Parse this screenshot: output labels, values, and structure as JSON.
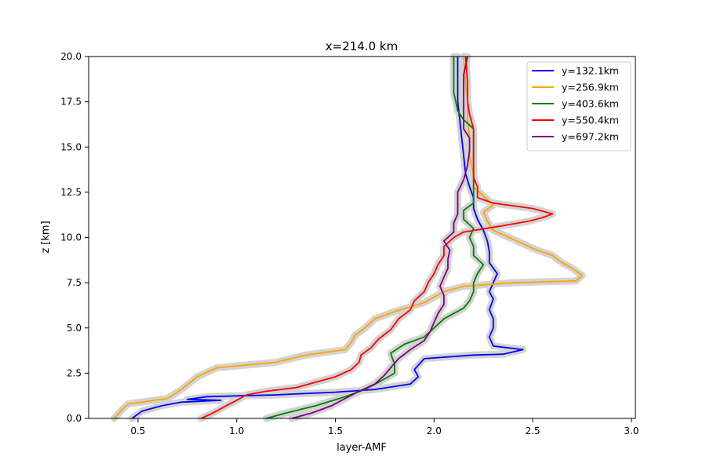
{
  "chart_data": {
    "type": "line",
    "title": "x=214.0 km",
    "xlabel": "layer-AMF",
    "ylabel": "z [km]",
    "xlim": [
      0.25,
      3.02
    ],
    "ylim": [
      0,
      20
    ],
    "xticks": [
      "0.5",
      "1.0",
      "1.5",
      "2.0",
      "2.5",
      "3.0"
    ],
    "yticks": [
      "0.0",
      "2.5",
      "5.0",
      "7.5",
      "10.0",
      "12.5",
      "15.0",
      "17.5",
      "20.0"
    ],
    "grid": false,
    "legend_position": "top-right",
    "uncertainty_band_color": "#d3d3d3",
    "series": [
      {
        "name": "y=132.1km",
        "color": "#0000ff",
        "points": [
          [
            0.47,
            0
          ],
          [
            0.52,
            0.4
          ],
          [
            0.62,
            0.7
          ],
          [
            0.72,
            0.9
          ],
          [
            0.92,
            1.0
          ],
          [
            0.75,
            1.05
          ],
          [
            0.85,
            1.2
          ],
          [
            1.2,
            1.3
          ],
          [
            1.5,
            1.45
          ],
          [
            1.7,
            1.6
          ],
          [
            1.88,
            1.9
          ],
          [
            1.92,
            2.3
          ],
          [
            1.9,
            2.7
          ],
          [
            1.95,
            3.3
          ],
          [
            2.2,
            3.5
          ],
          [
            2.35,
            3.55
          ],
          [
            2.45,
            3.8
          ],
          [
            2.3,
            4.0
          ],
          [
            2.28,
            4.5
          ],
          [
            2.3,
            5.0
          ],
          [
            2.3,
            5.5
          ],
          [
            2.28,
            6.0
          ],
          [
            2.3,
            6.6
          ],
          [
            2.28,
            7.0
          ],
          [
            2.3,
            7.5
          ],
          [
            2.32,
            8.0
          ],
          [
            2.28,
            8.6
          ],
          [
            2.28,
            9.2
          ],
          [
            2.27,
            9.8
          ],
          [
            2.25,
            10.4
          ],
          [
            2.22,
            11.0
          ],
          [
            2.2,
            11.6
          ],
          [
            2.2,
            12.2
          ],
          [
            2.18,
            12.8
          ],
          [
            2.16,
            13.5
          ],
          [
            2.15,
            14.5
          ],
          [
            2.14,
            15.5
          ],
          [
            2.13,
            16.5
          ],
          [
            2.12,
            17.5
          ],
          [
            2.12,
            18.5
          ],
          [
            2.12,
            20
          ]
        ]
      },
      {
        "name": "y=256.9km",
        "color": "#ffa500",
        "points": [
          [
            0.38,
            0
          ],
          [
            0.42,
            0.5
          ],
          [
            0.45,
            0.8
          ],
          [
            0.65,
            1.1
          ],
          [
            0.72,
            1.6
          ],
          [
            0.8,
            2.3
          ],
          [
            0.9,
            2.8
          ],
          [
            1.2,
            3.1
          ],
          [
            1.35,
            3.5
          ],
          [
            1.55,
            3.8
          ],
          [
            1.58,
            4.2
          ],
          [
            1.6,
            4.6
          ],
          [
            1.65,
            5.0
          ],
          [
            1.7,
            5.5
          ],
          [
            1.8,
            5.9
          ],
          [
            1.95,
            6.4
          ],
          [
            2.05,
            7.0
          ],
          [
            2.15,
            7.3
          ],
          [
            2.4,
            7.5
          ],
          [
            2.72,
            7.6
          ],
          [
            2.75,
            7.9
          ],
          [
            2.7,
            8.3
          ],
          [
            2.65,
            8.6
          ],
          [
            2.6,
            9.0
          ],
          [
            2.5,
            9.4
          ],
          [
            2.4,
            9.9
          ],
          [
            2.3,
            10.4
          ],
          [
            2.27,
            10.9
          ],
          [
            2.25,
            11.4
          ],
          [
            2.3,
            11.8
          ],
          [
            2.25,
            12.3
          ],
          [
            2.2,
            12.8
          ],
          [
            2.2,
            13.5
          ],
          [
            2.18,
            14.5
          ],
          [
            2.18,
            15.5
          ],
          [
            2.17,
            16.5
          ],
          [
            2.17,
            17.5
          ],
          [
            2.16,
            18.5
          ],
          [
            2.15,
            20
          ]
        ]
      },
      {
        "name": "y=403.6km",
        "color": "#008000",
        "points": [
          [
            1.15,
            0
          ],
          [
            1.25,
            0.3
          ],
          [
            1.4,
            0.7
          ],
          [
            1.55,
            1.2
          ],
          [
            1.65,
            1.6
          ],
          [
            1.72,
            2.0
          ],
          [
            1.8,
            2.5
          ],
          [
            1.8,
            3.0
          ],
          [
            1.78,
            3.6
          ],
          [
            1.85,
            4.1
          ],
          [
            1.95,
            4.5
          ],
          [
            2.0,
            5.0
          ],
          [
            2.05,
            5.5
          ],
          [
            2.1,
            5.8
          ],
          [
            2.15,
            6.1
          ],
          [
            2.18,
            6.5
          ],
          [
            2.2,
            7.0
          ],
          [
            2.2,
            7.5
          ],
          [
            2.22,
            8.0
          ],
          [
            2.25,
            8.5
          ],
          [
            2.2,
            9.0
          ],
          [
            2.2,
            9.5
          ],
          [
            2.18,
            10.0
          ],
          [
            2.2,
            10.5
          ],
          [
            2.15,
            11.0
          ],
          [
            2.15,
            11.5
          ],
          [
            2.2,
            11.9
          ],
          [
            2.2,
            12.5
          ],
          [
            2.2,
            13.0
          ],
          [
            2.2,
            13.5
          ],
          [
            2.2,
            14.5
          ],
          [
            2.2,
            15.2
          ],
          [
            2.2,
            16.0
          ],
          [
            2.15,
            16.5
          ],
          [
            2.12,
            17.0
          ],
          [
            2.1,
            18.0
          ],
          [
            2.1,
            20
          ]
        ]
      },
      {
        "name": "y=550.4km",
        "color": "#ff0000",
        "points": [
          [
            0.82,
            0
          ],
          [
            0.88,
            0.3
          ],
          [
            0.93,
            0.6
          ],
          [
            1.0,
            1.0
          ],
          [
            1.05,
            1.3
          ],
          [
            1.15,
            1.5
          ],
          [
            1.3,
            1.7
          ],
          [
            1.4,
            2.0
          ],
          [
            1.5,
            2.3
          ],
          [
            1.58,
            2.7
          ],
          [
            1.62,
            3.1
          ],
          [
            1.63,
            3.5
          ],
          [
            1.68,
            3.9
          ],
          [
            1.72,
            4.4
          ],
          [
            1.78,
            4.9
          ],
          [
            1.82,
            5.5
          ],
          [
            1.88,
            6.0
          ],
          [
            1.9,
            6.5
          ],
          [
            1.95,
            7.0
          ],
          [
            1.97,
            7.5
          ],
          [
            2.0,
            8.0
          ],
          [
            2.02,
            8.5
          ],
          [
            2.05,
            9.0
          ],
          [
            2.05,
            9.5
          ],
          [
            2.1,
            10.0
          ],
          [
            2.15,
            10.3
          ],
          [
            2.32,
            10.6
          ],
          [
            2.48,
            10.9
          ],
          [
            2.55,
            11.1
          ],
          [
            2.6,
            11.3
          ],
          [
            2.5,
            11.6
          ],
          [
            2.3,
            11.9
          ],
          [
            2.22,
            12.2
          ],
          [
            2.22,
            12.8
          ],
          [
            2.2,
            13.3
          ],
          [
            2.2,
            14.0
          ],
          [
            2.2,
            15.0
          ],
          [
            2.2,
            16.0
          ],
          [
            2.18,
            16.8
          ],
          [
            2.17,
            17.5
          ],
          [
            2.17,
            18.5
          ],
          [
            2.16,
            20
          ]
        ]
      },
      {
        "name": "y=697.2km",
        "color": "#800080",
        "points": [
          [
            1.28,
            0
          ],
          [
            1.38,
            0.3
          ],
          [
            1.48,
            0.7
          ],
          [
            1.55,
            1.1
          ],
          [
            1.62,
            1.5
          ],
          [
            1.7,
            1.9
          ],
          [
            1.75,
            2.4
          ],
          [
            1.78,
            2.8
          ],
          [
            1.82,
            3.3
          ],
          [
            1.88,
            3.8
          ],
          [
            1.95,
            4.3
          ],
          [
            1.98,
            4.8
          ],
          [
            2.0,
            5.3
          ],
          [
            2.02,
            5.8
          ],
          [
            2.05,
            6.3
          ],
          [
            2.05,
            6.8
          ],
          [
            2.03,
            7.3
          ],
          [
            2.05,
            7.8
          ],
          [
            2.07,
            8.3
          ],
          [
            2.07,
            8.8
          ],
          [
            2.08,
            9.3
          ],
          [
            2.05,
            9.8
          ],
          [
            2.1,
            10.3
          ],
          [
            2.1,
            10.8
          ],
          [
            2.12,
            11.3
          ],
          [
            2.12,
            11.8
          ],
          [
            2.12,
            12.5
          ],
          [
            2.15,
            13.2
          ],
          [
            2.17,
            14.0
          ],
          [
            2.18,
            14.8
          ],
          [
            2.18,
            15.5
          ],
          [
            2.15,
            16.0
          ],
          [
            2.15,
            17.0
          ],
          [
            2.15,
            18.0
          ],
          [
            2.15,
            19.0
          ],
          [
            2.17,
            20
          ]
        ]
      }
    ]
  }
}
